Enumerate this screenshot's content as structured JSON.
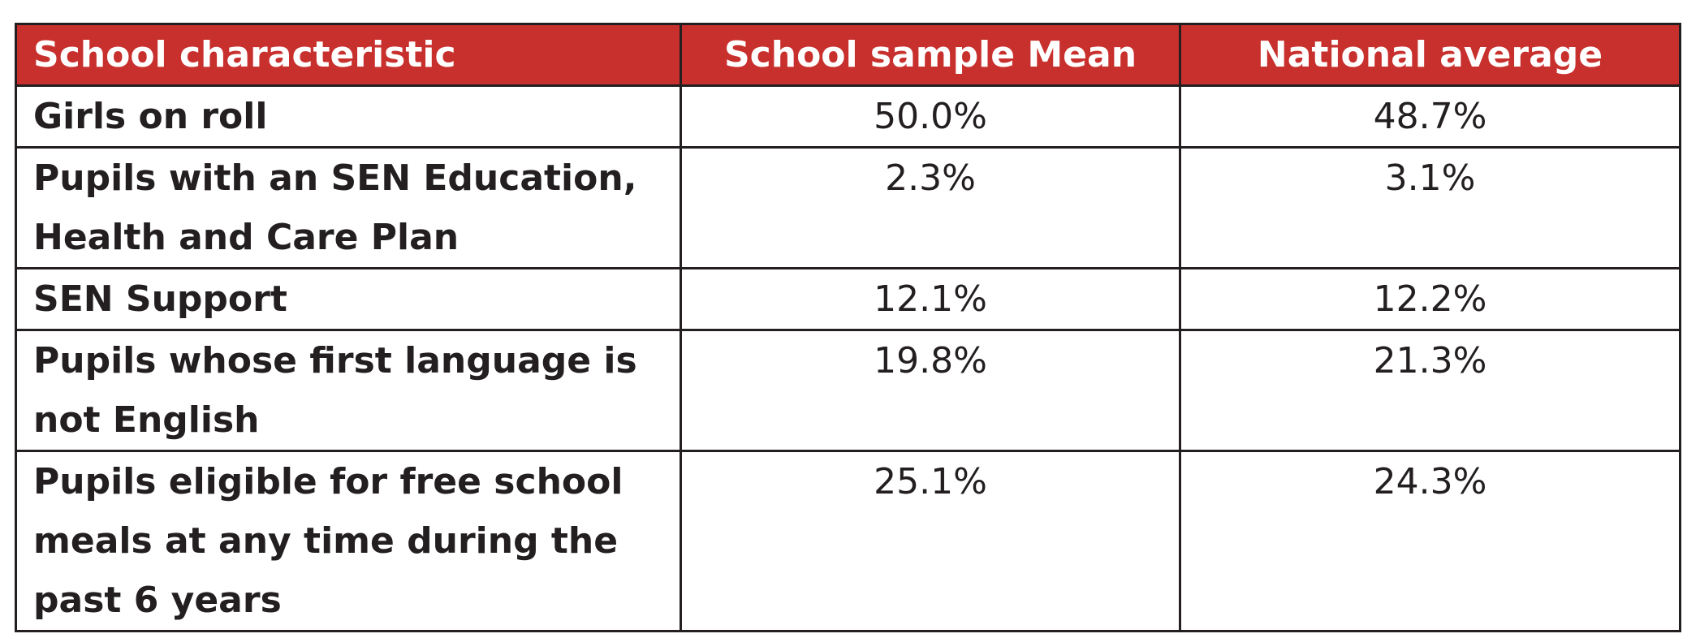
{
  "table": {
    "headers": [
      "School characteristic",
      "School sample Mean",
      "National average"
    ],
    "rows": [
      {
        "characteristic": "Girls on roll",
        "sample_mean": "50.0%",
        "national_average": "48.7%"
      },
      {
        "characteristic": "Pupils with an SEN Education, Health and Care Plan",
        "sample_mean": "2.3%",
        "national_average": "3.1%"
      },
      {
        "characteristic": "SEN Support",
        "sample_mean": "12.1%",
        "national_average": "12.2%"
      },
      {
        "characteristic": "Pupils whose first language is not English",
        "sample_mean": "19.8%",
        "national_average": "21.3%"
      },
      {
        "characteristic": "Pupils eligible for free school meals at any time during the past 6 years",
        "sample_mean": "25.1%",
        "national_average": "24.3%"
      }
    ]
  },
  "colors": {
    "header_background": "#c8302d",
    "header_text": "#ffffff",
    "body_text": "#231f20",
    "border": "#231f20"
  }
}
